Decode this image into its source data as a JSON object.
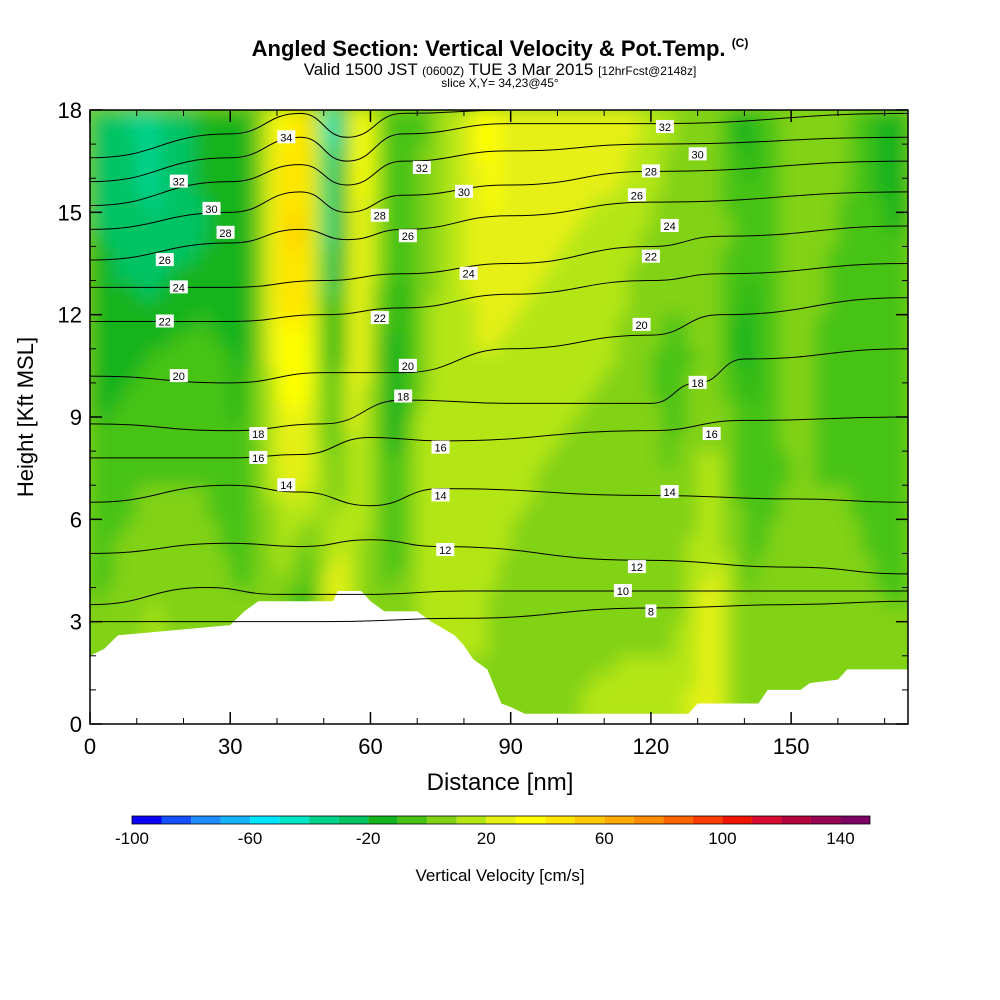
{
  "chart_data": {
    "type": "heatmap",
    "title": "Angled Section: Vertical Velocity & Pot.Temp.",
    "title_units": "(C)",
    "subtitle_prefix": "Valid 1500 JST",
    "subtitle_zulu": "(0600Z)",
    "subtitle_date": "TUE 3 Mar 2015",
    "subtitle_fcst": "[12hrFcst@2148z]",
    "slice_label": "slice X,Y= 34,23@45°",
    "xlabel": "Distance [nm]",
    "ylabel": "Height [Kft MSL]",
    "xlim": [
      0,
      175
    ],
    "ylim": [
      0,
      18
    ],
    "x_ticks": [
      "0",
      "30",
      "60",
      "90",
      "120",
      "150"
    ],
    "x_tick_values": [
      0,
      30,
      60,
      90,
      120,
      150
    ],
    "y_ticks": [
      "0",
      "3",
      "6",
      "9",
      "12",
      "15",
      "18"
    ],
    "y_tick_values": [
      0,
      3,
      6,
      9,
      12,
      15,
      18
    ],
    "colorbar": {
      "label": "Vertical Velocity [cm/s]",
      "min": -100,
      "max": 150,
      "step": 10,
      "tick_labels": [
        "-100",
        "-60",
        "-20",
        "20",
        "60",
        "100",
        "140"
      ],
      "tick_values": [
        -100,
        -60,
        -20,
        20,
        60,
        100,
        140
      ],
      "colors": [
        "#0a00f5",
        "#1450ff",
        "#1e8cff",
        "#14b4ff",
        "#00e6ff",
        "#00e6c8",
        "#00d28c",
        "#00c364",
        "#14b41e",
        "#46c314",
        "#82d214",
        "#b4e614",
        "#e6f014",
        "#ffff00",
        "#ffe600",
        "#ffc800",
        "#ffaa00",
        "#ff8c00",
        "#ff6400",
        "#ff3c00",
        "#f01400",
        "#d70a32",
        "#b4003c",
        "#960050",
        "#7d0064"
      ]
    },
    "velocity_columns": [
      {
        "x": 3,
        "values_low_to_high": [
          5,
          0,
          -5,
          -15,
          -20,
          -25
        ]
      },
      {
        "x": 13,
        "values_low_to_high": [
          15,
          10,
          0,
          -10,
          -30,
          -35
        ]
      },
      {
        "x": 25,
        "values_low_to_high": [
          10,
          5,
          0,
          -5,
          -20,
          -15
        ]
      },
      {
        "x": 33,
        "values_low_to_high": [
          5,
          0,
          -10,
          -15,
          -20,
          -15
        ]
      },
      {
        "x": 42,
        "values_low_to_high": [
          -15,
          5,
          25,
          40,
          55,
          40
        ]
      },
      {
        "x": 47,
        "values_low_to_high": [
          -10,
          -15,
          20,
          35,
          45,
          50
        ]
      },
      {
        "x": 52,
        "values_low_to_high": [
          55,
          35,
          0,
          -20,
          -45,
          -60
        ]
      },
      {
        "x": 57,
        "values_low_to_high": [
          5,
          10,
          20,
          35,
          40,
          45
        ]
      },
      {
        "x": 65,
        "values_low_to_high": [
          0,
          0,
          -15,
          -20,
          -10,
          -10
        ]
      },
      {
        "x": 72,
        "values_low_to_high": [
          5,
          15,
          20,
          10,
          5,
          0
        ]
      },
      {
        "x": 85,
        "values_low_to_high": [
          10,
          10,
          15,
          20,
          30,
          35
        ]
      },
      {
        "x": 95,
        "values_low_to_high": [
          5,
          5,
          10,
          15,
          25,
          20
        ]
      },
      {
        "x": 112,
        "values_low_to_high": [
          15,
          5,
          5,
          10,
          15,
          30
        ]
      },
      {
        "x": 125,
        "values_low_to_high": [
          15,
          5,
          0,
          -5,
          5,
          10
        ]
      },
      {
        "x": 133,
        "values_low_to_high": [
          30,
          25,
          15,
          5,
          10,
          5
        ]
      },
      {
        "x": 140,
        "values_low_to_high": [
          5,
          0,
          -5,
          -15,
          -10,
          -15
        ]
      },
      {
        "x": 150,
        "values_low_to_high": [
          10,
          5,
          0,
          5,
          5,
          5
        ]
      },
      {
        "x": 160,
        "values_low_to_high": [
          0,
          5,
          0,
          -5,
          0,
          5
        ]
      },
      {
        "x": 170,
        "values_low_to_high": [
          5,
          0,
          -5,
          -10,
          -10,
          -15
        ]
      }
    ],
    "terrain": [
      [
        0,
        2
      ],
      [
        3,
        2.2
      ],
      [
        6,
        2.6
      ],
      [
        30,
        2.9
      ],
      [
        33,
        3.3
      ],
      [
        36,
        3.6
      ],
      [
        52,
        3.6
      ],
      [
        53,
        3.9
      ],
      [
        58,
        3.9
      ],
      [
        60,
        3.6
      ],
      [
        63,
        3.3
      ],
      [
        70,
        3.3
      ],
      [
        73,
        3.0
      ],
      [
        78,
        2.6
      ],
      [
        80,
        2.3
      ],
      [
        82,
        1.9
      ],
      [
        85,
        1.6
      ],
      [
        88,
        0.6
      ],
      [
        90,
        0.5
      ],
      [
        93,
        0.3
      ],
      [
        128,
        0.3
      ],
      [
        130,
        0.6
      ],
      [
        143,
        0.6
      ],
      [
        145,
        1.0
      ],
      [
        152,
        1.0
      ],
      [
        154,
        1.2
      ],
      [
        160,
        1.3
      ],
      [
        162,
        1.6
      ],
      [
        175,
        1.6
      ]
    ],
    "isentropes": [
      {
        "theta": 8,
        "points": [
          [
            0,
            3.0
          ],
          [
            40,
            3.0
          ],
          [
            50,
            3.0
          ],
          [
            80,
            3.1
          ],
          [
            120,
            3.4
          ],
          [
            150,
            3.5
          ],
          [
            175,
            3.6
          ]
        ]
      },
      {
        "theta": 10,
        "points": [
          [
            0,
            3.5
          ],
          [
            25,
            4.0
          ],
          [
            40,
            3.8
          ],
          [
            60,
            3.8
          ],
          [
            80,
            3.9
          ],
          [
            115,
            3.9
          ],
          [
            150,
            3.9
          ],
          [
            175,
            3.9
          ]
        ]
      },
      {
        "theta": 12,
        "points": [
          [
            0,
            5.0
          ],
          [
            30,
            5.3
          ],
          [
            45,
            5.2
          ],
          [
            60,
            5.4
          ],
          [
            75,
            5.2
          ],
          [
            118,
            4.8
          ],
          [
            150,
            4.6
          ],
          [
            175,
            4.4
          ]
        ]
      },
      {
        "theta": 14,
        "points": [
          [
            0,
            6.5
          ],
          [
            30,
            7.0
          ],
          [
            45,
            6.8
          ],
          [
            60,
            6.4
          ],
          [
            75,
            6.9
          ],
          [
            120,
            6.7
          ],
          [
            150,
            6.6
          ],
          [
            175,
            6.5
          ]
        ]
      },
      {
        "theta": 16,
        "points": [
          [
            0,
            7.8
          ],
          [
            30,
            7.8
          ],
          [
            45,
            7.9
          ],
          [
            60,
            8.4
          ],
          [
            75,
            8.3
          ],
          [
            120,
            8.6
          ],
          [
            140,
            8.9
          ],
          [
            175,
            9.0
          ]
        ]
      },
      {
        "theta": 18,
        "points": [
          [
            0,
            8.8
          ],
          [
            30,
            8.6
          ],
          [
            50,
            8.8
          ],
          [
            67,
            9.5
          ],
          [
            90,
            9.4
          ],
          [
            120,
            9.4
          ],
          [
            130,
            10.0
          ],
          [
            140,
            10.7
          ],
          [
            175,
            11.0
          ]
        ]
      },
      {
        "theta": 20,
        "points": [
          [
            0,
            10.2
          ],
          [
            30,
            10.0
          ],
          [
            50,
            10.3
          ],
          [
            67,
            10.3
          ],
          [
            90,
            11.0
          ],
          [
            120,
            11.4
          ],
          [
            135,
            12.0
          ],
          [
            175,
            12.5
          ]
        ]
      },
      {
        "theta": 22,
        "points": [
          [
            0,
            11.8
          ],
          [
            30,
            11.8
          ],
          [
            50,
            12.0
          ],
          [
            67,
            12.2
          ],
          [
            90,
            12.6
          ],
          [
            120,
            13.0
          ],
          [
            135,
            13.2
          ],
          [
            175,
            13.5
          ]
        ]
      },
      {
        "theta": 24,
        "points": [
          [
            0,
            12.8
          ],
          [
            30,
            12.8
          ],
          [
            50,
            13.0
          ],
          [
            67,
            13.2
          ],
          [
            90,
            13.5
          ],
          [
            120,
            14.0
          ],
          [
            135,
            14.3
          ],
          [
            175,
            14.6
          ]
        ]
      },
      {
        "theta": 26,
        "points": [
          [
            0,
            13.6
          ],
          [
            30,
            14.1
          ],
          [
            45,
            14.5
          ],
          [
            55,
            14.2
          ],
          [
            67,
            14.5
          ],
          [
            90,
            14.9
          ],
          [
            120,
            15.3
          ],
          [
            175,
            15.6
          ]
        ]
      },
      {
        "theta": 28,
        "points": [
          [
            0,
            14.5
          ],
          [
            30,
            15.0
          ],
          [
            45,
            15.6
          ],
          [
            55,
            15.0
          ],
          [
            67,
            15.5
          ],
          [
            90,
            15.8
          ],
          [
            120,
            16.2
          ],
          [
            175,
            16.5
          ]
        ]
      },
      {
        "theta": 30,
        "points": [
          [
            0,
            15.2
          ],
          [
            30,
            15.9
          ],
          [
            45,
            16.4
          ],
          [
            55,
            15.8
          ],
          [
            67,
            16.5
          ],
          [
            90,
            16.8
          ],
          [
            120,
            17.0
          ],
          [
            175,
            17.2
          ]
        ]
      },
      {
        "theta": 32,
        "points": [
          [
            0,
            15.9
          ],
          [
            30,
            16.6
          ],
          [
            45,
            17.2
          ],
          [
            55,
            16.5
          ],
          [
            67,
            17.3
          ],
          [
            90,
            17.6
          ],
          [
            120,
            17.6
          ],
          [
            175,
            17.9
          ]
        ]
      },
      {
        "theta": 34,
        "points": [
          [
            0,
            16.6
          ],
          [
            30,
            17.3
          ],
          [
            45,
            17.9
          ],
          [
            55,
            17.2
          ],
          [
            67,
            17.9
          ],
          [
            90,
            18.0
          ],
          [
            175,
            18.0
          ]
        ]
      }
    ],
    "contour_labels": [
      {
        "text": "34",
        "x": 42,
        "y": 17.2
      },
      {
        "text": "32",
        "x": 19,
        "y": 15.9
      },
      {
        "text": "30",
        "x": 26,
        "y": 15.1
      },
      {
        "text": "28",
        "x": 29,
        "y": 14.4
      },
      {
        "text": "26",
        "x": 16,
        "y": 13.6
      },
      {
        "text": "24",
        "x": 19,
        "y": 12.8
      },
      {
        "text": "22",
        "x": 16,
        "y": 11.8
      },
      {
        "text": "20",
        "x": 19,
        "y": 10.2
      },
      {
        "text": "18",
        "x": 36,
        "y": 8.5
      },
      {
        "text": "16",
        "x": 36,
        "y": 7.8
      },
      {
        "text": "14",
        "x": 42,
        "y": 7.0
      },
      {
        "text": "32",
        "x": 71,
        "y": 16.3
      },
      {
        "text": "30",
        "x": 80,
        "y": 15.6
      },
      {
        "text": "28",
        "x": 62,
        "y": 14.9
      },
      {
        "text": "26",
        "x": 68,
        "y": 14.3
      },
      {
        "text": "24",
        "x": 81,
        "y": 13.2
      },
      {
        "text": "22",
        "x": 62,
        "y": 11.9
      },
      {
        "text": "20",
        "x": 68,
        "y": 10.5
      },
      {
        "text": "18",
        "x": 67,
        "y": 9.6
      },
      {
        "text": "16",
        "x": 75,
        "y": 8.1
      },
      {
        "text": "14",
        "x": 75,
        "y": 6.7
      },
      {
        "text": "12",
        "x": 76,
        "y": 5.1
      },
      {
        "text": "32",
        "x": 123,
        "y": 17.5
      },
      {
        "text": "30",
        "x": 130,
        "y": 16.7
      },
      {
        "text": "28",
        "x": 120,
        "y": 16.2
      },
      {
        "text": "26",
        "x": 117,
        "y": 15.5
      },
      {
        "text": "24",
        "x": 124,
        "y": 14.6
      },
      {
        "text": "22",
        "x": 120,
        "y": 13.7
      },
      {
        "text": "20",
        "x": 118,
        "y": 11.7
      },
      {
        "text": "18",
        "x": 130,
        "y": 10.0
      },
      {
        "text": "16",
        "x": 133,
        "y": 8.5
      },
      {
        "text": "14",
        "x": 124,
        "y": 6.8
      },
      {
        "text": "12",
        "x": 117,
        "y": 4.6
      },
      {
        "text": "10",
        "x": 114,
        "y": 3.9
      },
      {
        "text": "8",
        "x": 120,
        "y": 3.3
      }
    ]
  }
}
